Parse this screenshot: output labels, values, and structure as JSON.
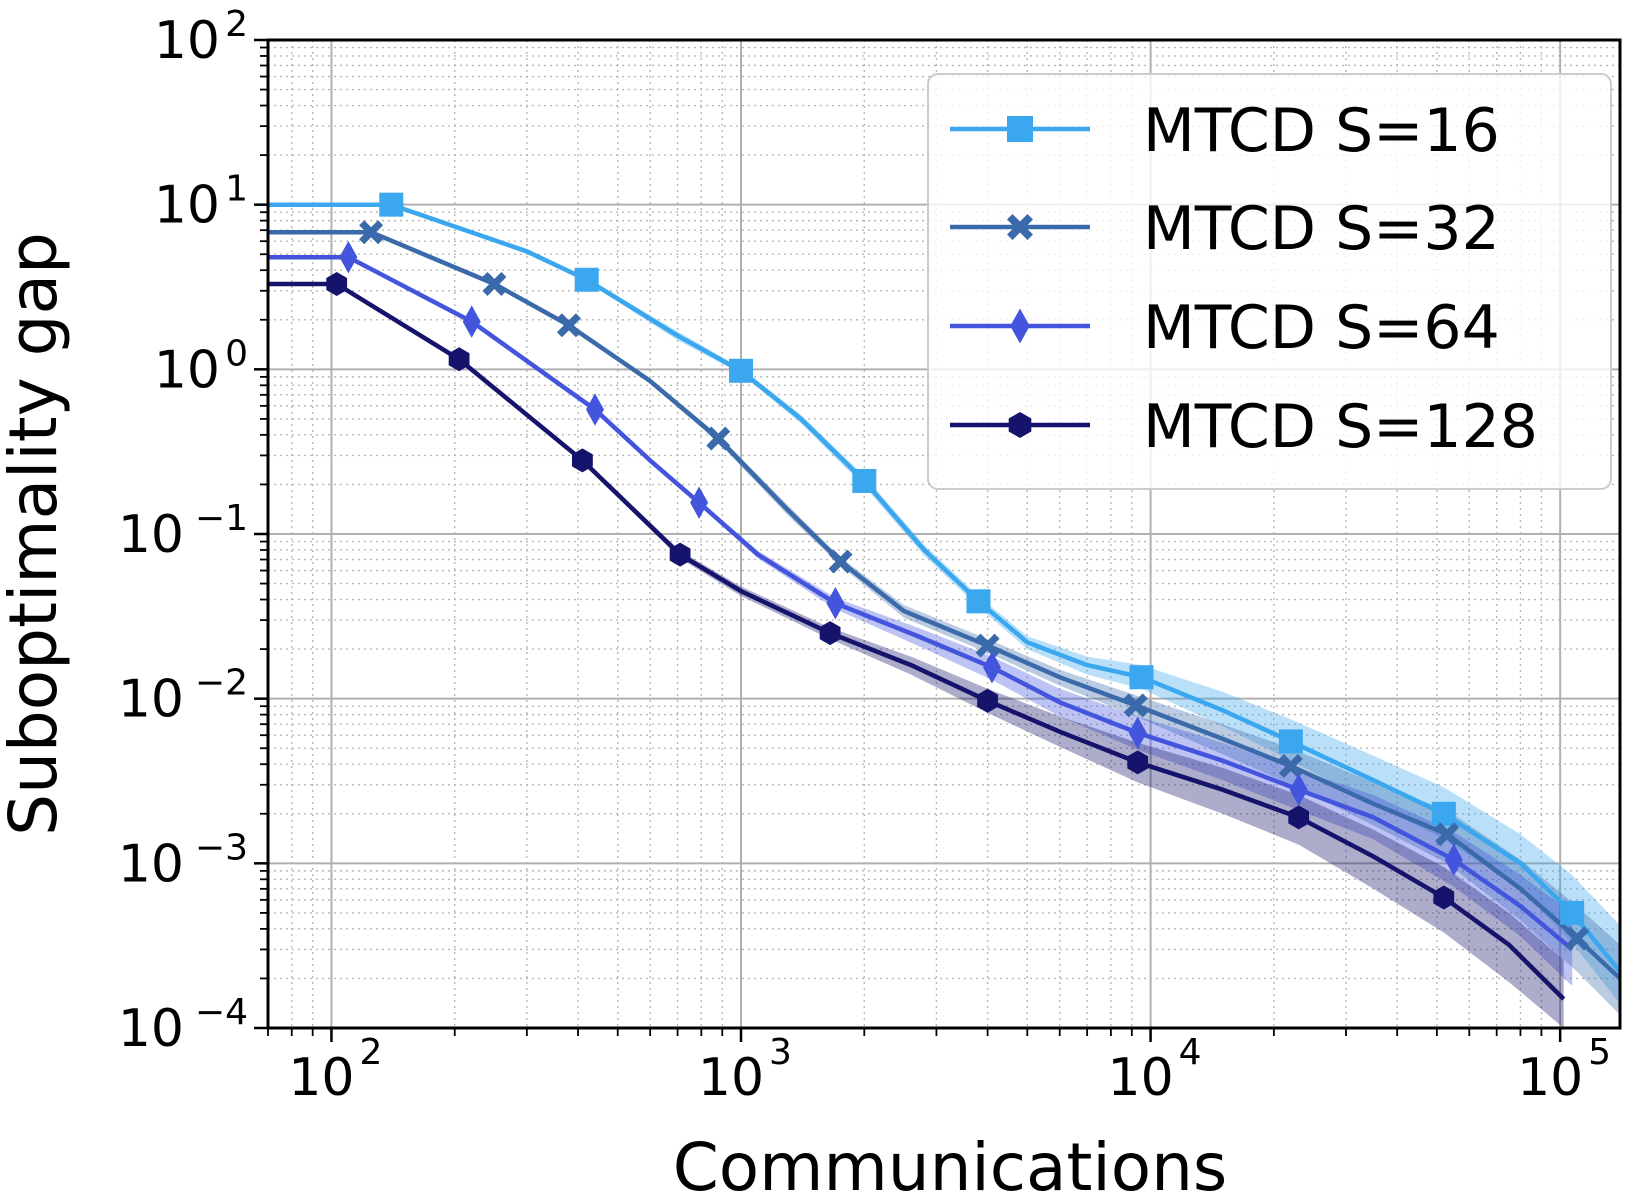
{
  "chart_data": {
    "type": "line",
    "title": "",
    "xlabel": "Communications",
    "ylabel": "Suboptimality gap",
    "xscale": "log",
    "yscale": "log",
    "xlim": [
      70,
      140000
    ],
    "ylim": [
      0.0001,
      100
    ],
    "x_ticks": [
      {
        "value": 100,
        "base": "10",
        "exp": "2"
      },
      {
        "value": 1000,
        "base": "10",
        "exp": "3"
      },
      {
        "value": 10000,
        "base": "10",
        "exp": "4"
      },
      {
        "value": 100000,
        "base": "10",
        "exp": "5"
      }
    ],
    "y_ticks": [
      {
        "value": 100,
        "base": "10",
        "exp": "2"
      },
      {
        "value": 10,
        "base": "10",
        "exp": "1"
      },
      {
        "value": 1,
        "base": "10",
        "exp": "0"
      },
      {
        "value": 0.1,
        "base": "10",
        "exp": "−1"
      },
      {
        "value": 0.01,
        "base": "10",
        "exp": "−2"
      },
      {
        "value": 0.001,
        "base": "10",
        "exp": "−3"
      },
      {
        "value": 0.0001,
        "base": "10",
        "exp": "−4"
      }
    ],
    "grid": true,
    "legend_position": "top-right",
    "series": [
      {
        "name": "MTCD S=16",
        "color": "#3aa7ee",
        "marker": "square",
        "line": {
          "x": [
            70,
            140,
            300,
            420,
            700,
            1000,
            1400,
            2000,
            2800,
            3800,
            5000,
            7000,
            9500,
            15000,
            22000,
            35000,
            52000,
            80000,
            107000,
            140000
          ],
          "y": [
            10,
            10,
            5.2,
            3.5,
            1.6,
            0.98,
            0.5,
            0.21,
            0.08,
            0.039,
            0.022,
            0.016,
            0.0135,
            0.0085,
            0.0055,
            0.0032,
            0.002,
            0.001,
            0.0005,
            0.00022
          ]
        },
        "band_upper": [
          10,
          10,
          5.4,
          3.6,
          1.7,
          1.02,
          0.53,
          0.225,
          0.086,
          0.042,
          0.024,
          0.018,
          0.016,
          0.011,
          0.0075,
          0.0045,
          0.0029,
          0.0015,
          0.00085,
          0.00042
        ],
        "band_lower": [
          10,
          10,
          5.0,
          3.4,
          1.5,
          0.94,
          0.47,
          0.195,
          0.074,
          0.036,
          0.02,
          0.014,
          0.0115,
          0.0068,
          0.0042,
          0.0023,
          0.0014,
          0.0007,
          0.00033,
          0.00014
        ],
        "markers": {
          "x": [
            140,
            420,
            1000,
            2000,
            3800,
            9500,
            22000,
            52000,
            107000
          ],
          "y": [
            10,
            3.5,
            0.98,
            0.21,
            0.039,
            0.0135,
            0.0055,
            0.002,
            0.0005
          ]
        }
      },
      {
        "name": "MTCD S=32",
        "color": "#3b6aab",
        "marker": "x",
        "line": {
          "x": [
            70,
            125,
            250,
            380,
            600,
            880,
            1300,
            1750,
            2500,
            4000,
            6000,
            9200,
            15000,
            22000,
            35000,
            53000,
            80000,
            110000,
            140000
          ],
          "y": [
            6.8,
            6.8,
            3.3,
            1.85,
            0.85,
            0.38,
            0.14,
            0.068,
            0.034,
            0.021,
            0.0135,
            0.0091,
            0.0057,
            0.0039,
            0.0023,
            0.0015,
            0.0007,
            0.00035,
            0.0002
          ]
        },
        "band_upper": [
          6.8,
          6.8,
          3.4,
          1.92,
          0.88,
          0.4,
          0.15,
          0.072,
          0.037,
          0.023,
          0.015,
          0.0105,
          0.007,
          0.005,
          0.0031,
          0.0021,
          0.00105,
          0.00055,
          0.00032
        ],
        "band_lower": [
          6.8,
          6.8,
          3.2,
          1.78,
          0.82,
          0.36,
          0.13,
          0.064,
          0.031,
          0.019,
          0.012,
          0.0078,
          0.0046,
          0.003,
          0.0017,
          0.001,
          0.00045,
          0.00022,
          0.00012
        ],
        "markers": {
          "x": [
            125,
            250,
            380,
            880,
            1750,
            4000,
            9200,
            22000,
            53000,
            110000
          ],
          "y": [
            6.8,
            3.3,
            1.85,
            0.38,
            0.068,
            0.021,
            0.0091,
            0.0039,
            0.0015,
            0.00035
          ]
        }
      },
      {
        "name": "MTCD S=64",
        "color": "#4354dd",
        "marker": "diamond",
        "line": {
          "x": [
            70,
            110,
            220,
            440,
            600,
            790,
            1100,
            1700,
            2700,
            4100,
            6000,
            9300,
            15000,
            23000,
            35000,
            55000,
            80000,
            107000
          ],
          "y": [
            4.8,
            4.8,
            1.95,
            0.57,
            0.28,
            0.155,
            0.075,
            0.038,
            0.024,
            0.0155,
            0.0095,
            0.0062,
            0.0042,
            0.0028,
            0.0019,
            0.00105,
            0.00055,
            0.0003
          ]
        },
        "band_upper": [
          4.8,
          4.8,
          2.0,
          0.59,
          0.29,
          0.16,
          0.079,
          0.041,
          0.027,
          0.018,
          0.0115,
          0.0078,
          0.0054,
          0.0037,
          0.0026,
          0.00155,
          0.00085,
          0.0005
        ],
        "band_lower": [
          4.8,
          4.8,
          1.9,
          0.55,
          0.27,
          0.15,
          0.071,
          0.035,
          0.021,
          0.013,
          0.0078,
          0.0049,
          0.0032,
          0.0021,
          0.0014,
          0.00072,
          0.00036,
          0.00018
        ],
        "markers": {
          "x": [
            110,
            220,
            440,
            790,
            1700,
            4100,
            9300,
            23000,
            55000
          ],
          "y": [
            4.8,
            1.95,
            0.57,
            0.155,
            0.038,
            0.0155,
            0.0062,
            0.0028,
            0.00105
          ]
        }
      },
      {
        "name": "MTCD S=128",
        "color": "#15136b",
        "marker": "hexagon",
        "line": {
          "x": [
            70,
            103,
            205,
            410,
            710,
            1000,
            1650,
            2600,
            4000,
            6000,
            9300,
            15000,
            23000,
            35000,
            52000,
            75000,
            102000
          ],
          "y": [
            3.3,
            3.3,
            1.15,
            0.28,
            0.075,
            0.045,
            0.025,
            0.016,
            0.0097,
            0.0063,
            0.0041,
            0.0028,
            0.0019,
            0.0011,
            0.00062,
            0.00032,
            0.00015
          ]
        },
        "band_upper": [
          3.3,
          3.3,
          1.18,
          0.29,
          0.079,
          0.048,
          0.027,
          0.018,
          0.0115,
          0.0078,
          0.0054,
          0.0038,
          0.0026,
          0.0016,
          0.00095,
          0.0005,
          0.00026
        ],
        "band_lower": [
          3.3,
          3.3,
          1.12,
          0.27,
          0.071,
          0.042,
          0.023,
          0.014,
          0.0082,
          0.0051,
          0.0031,
          0.002,
          0.0013,
          0.0007,
          0.00038,
          0.00019,
          0.0001
        ],
        "markers": {
          "x": [
            103,
            205,
            410,
            710,
            1650,
            4000,
            9300,
            23000,
            52000
          ],
          "y": [
            3.3,
            1.15,
            0.28,
            0.075,
            0.025,
            0.0097,
            0.0041,
            0.0019,
            0.00062
          ]
        }
      }
    ]
  }
}
